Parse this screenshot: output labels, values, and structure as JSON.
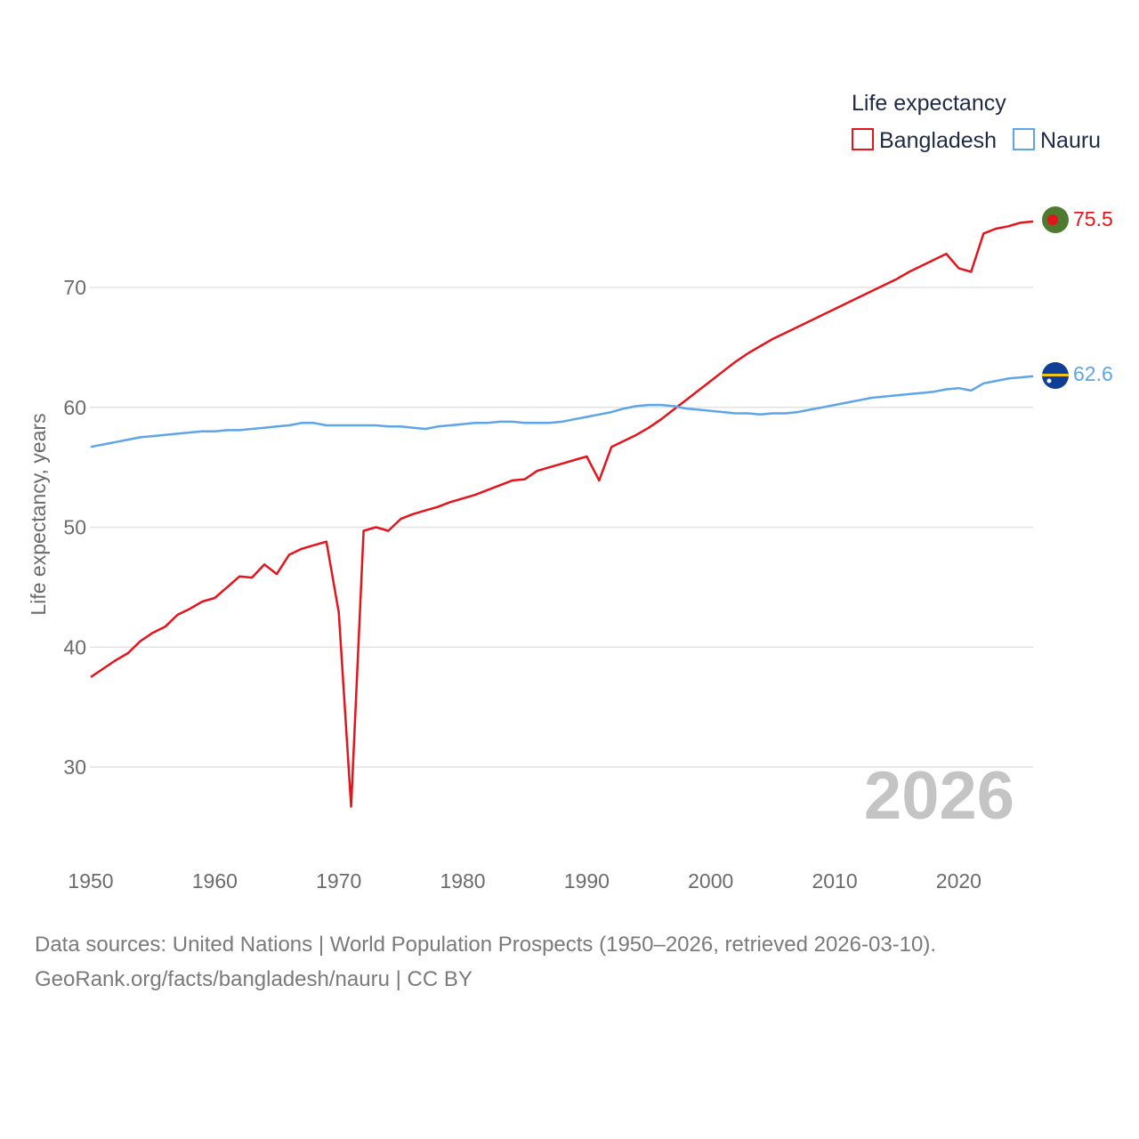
{
  "chart_data": {
    "type": "line",
    "legend_title": "Life expectancy",
    "ylabel": "Life expectancy, years",
    "xlim": [
      1950,
      2026
    ],
    "ylim": [
      25,
      78
    ],
    "x_ticks": [
      1950,
      1960,
      1970,
      1980,
      1990,
      2000,
      2010,
      2020
    ],
    "y_ticks": [
      30,
      40,
      50,
      60,
      70
    ],
    "current_year": "2026",
    "series": [
      {
        "name": "Bangladesh",
        "color": "#e3141b",
        "end_label": "75.5",
        "flag": "bangladesh-flag-icon",
        "x": [
          1950,
          1951,
          1952,
          1953,
          1954,
          1955,
          1956,
          1957,
          1958,
          1959,
          1960,
          1961,
          1962,
          1963,
          1964,
          1965,
          1966,
          1967,
          1968,
          1969,
          1970,
          1971,
          1972,
          1973,
          1974,
          1975,
          1976,
          1977,
          1978,
          1979,
          1980,
          1981,
          1982,
          1983,
          1984,
          1985,
          1986,
          1987,
          1988,
          1989,
          1990,
          1991,
          1992,
          1993,
          1994,
          1995,
          1996,
          1997,
          1998,
          1999,
          2000,
          2001,
          2002,
          2003,
          2004,
          2005,
          2006,
          2007,
          2008,
          2009,
          2010,
          2011,
          2012,
          2013,
          2014,
          2015,
          2016,
          2017,
          2018,
          2019,
          2020,
          2021,
          2022,
          2023,
          2024,
          2025,
          2026
        ],
        "values": [
          37.5,
          38.2,
          38.9,
          39.5,
          40.5,
          41.2,
          41.7,
          42.7,
          43.2,
          43.8,
          44.1,
          45.0,
          45.9,
          45.8,
          46.9,
          46.1,
          47.7,
          48.2,
          48.5,
          48.8,
          42.9,
          26.7,
          49.7,
          50.0,
          49.7,
          50.7,
          51.1,
          51.4,
          51.7,
          52.1,
          52.4,
          52.7,
          53.1,
          53.5,
          53.9,
          54.0,
          54.7,
          55.0,
          55.3,
          55.6,
          55.9,
          53.9,
          56.7,
          57.2,
          57.7,
          58.3,
          59.0,
          59.8,
          60.6,
          61.4,
          62.2,
          63.0,
          63.8,
          64.5,
          65.1,
          65.7,
          66.2,
          66.7,
          67.2,
          67.7,
          68.2,
          68.7,
          69.2,
          69.7,
          70.2,
          70.7,
          71.3,
          71.8,
          72.3,
          72.8,
          71.6,
          71.3,
          74.5,
          74.9,
          75.1,
          75.4,
          75.5
        ]
      },
      {
        "name": "Nauru",
        "color": "#5da5e8",
        "end_label": "62.6",
        "flag": "nauru-flag-icon",
        "x": [
          1950,
          1951,
          1952,
          1953,
          1954,
          1955,
          1956,
          1957,
          1958,
          1959,
          1960,
          1961,
          1962,
          1963,
          1964,
          1965,
          1966,
          1967,
          1968,
          1969,
          1970,
          1971,
          1972,
          1973,
          1974,
          1975,
          1976,
          1977,
          1978,
          1979,
          1980,
          1981,
          1982,
          1983,
          1984,
          1985,
          1986,
          1987,
          1988,
          1989,
          1990,
          1991,
          1992,
          1993,
          1994,
          1995,
          1996,
          1997,
          1998,
          1999,
          2000,
          2001,
          2002,
          2003,
          2004,
          2005,
          2006,
          2007,
          2008,
          2009,
          2010,
          2011,
          2012,
          2013,
          2014,
          2015,
          2016,
          2017,
          2018,
          2019,
          2020,
          2021,
          2022,
          2023,
          2024,
          2025,
          2026
        ],
        "values": [
          56.7,
          56.9,
          57.1,
          57.3,
          57.5,
          57.6,
          57.7,
          57.8,
          57.9,
          58.0,
          58.0,
          58.1,
          58.1,
          58.2,
          58.3,
          58.4,
          58.5,
          58.7,
          58.7,
          58.5,
          58.5,
          58.5,
          58.5,
          58.5,
          58.4,
          58.4,
          58.3,
          58.2,
          58.4,
          58.5,
          58.6,
          58.7,
          58.7,
          58.8,
          58.8,
          58.7,
          58.7,
          58.7,
          58.8,
          59.0,
          59.2,
          59.4,
          59.6,
          59.9,
          60.1,
          60.2,
          60.2,
          60.1,
          59.9,
          59.8,
          59.7,
          59.6,
          59.5,
          59.5,
          59.4,
          59.5,
          59.5,
          59.6,
          59.8,
          60.0,
          60.2,
          60.4,
          60.6,
          60.8,
          60.9,
          61.0,
          61.1,
          61.2,
          61.3,
          61.5,
          61.6,
          61.4,
          62.0,
          62.2,
          62.4,
          62.5,
          62.6
        ]
      }
    ]
  },
  "footer": {
    "line1": "Data sources: United Nations | World Population Prospects (1950–2026, retrieved 2026-03-10).",
    "line2": "GeoRank.org/facts/bangladesh/nauru | CC BY"
  }
}
